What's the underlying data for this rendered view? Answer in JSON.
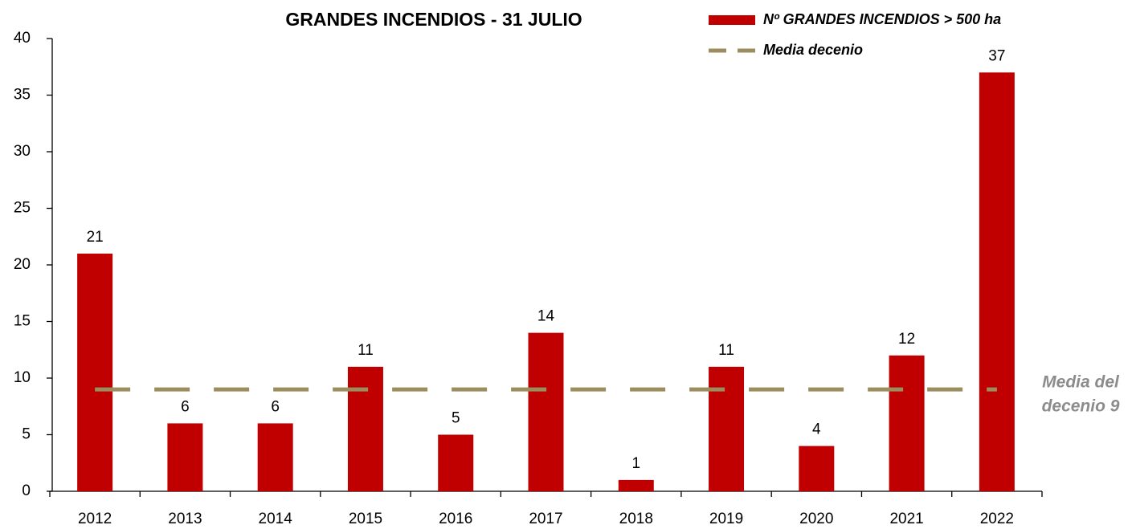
{
  "chart_data": {
    "type": "bar",
    "title": "GRANDES INCENDIOS - 31 JULIO",
    "categories": [
      "2012",
      "2013",
      "2014",
      "2015",
      "2016",
      "2017",
      "2018",
      "2019",
      "2020",
      "2021",
      "2022"
    ],
    "series": [
      {
        "name": "Nº GRANDES INCENDIOS > 500 ha",
        "type": "bar",
        "color": "#c00000",
        "values": [
          21,
          6,
          6,
          11,
          5,
          14,
          1,
          11,
          4,
          12,
          37
        ]
      },
      {
        "name": "Media decenio",
        "type": "line",
        "dashed": true,
        "color": "#9c8d5e",
        "values": [
          9,
          9,
          9,
          9,
          9,
          9,
          9,
          9,
          9,
          9,
          9
        ]
      }
    ],
    "annotation": [
      "Media del",
      "decenio 9"
    ],
    "ylim": [
      0,
      40
    ],
    "yticks": [
      0,
      5,
      10,
      15,
      20,
      25,
      30,
      35,
      40
    ],
    "grid": false,
    "legend": "top-right"
  }
}
